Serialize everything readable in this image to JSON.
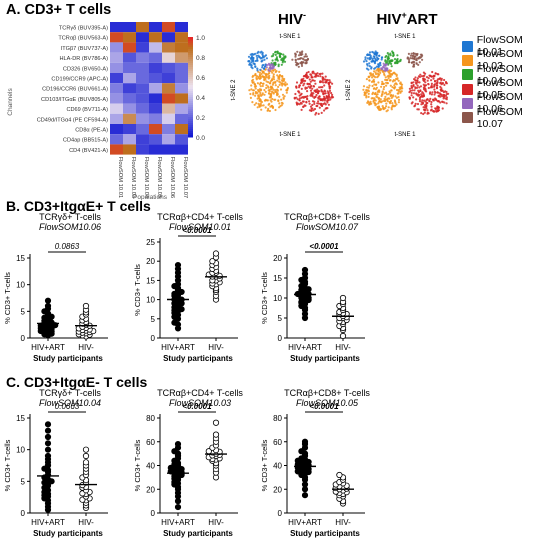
{
  "sections": {
    "a": "A. CD3+ T cells",
    "b": "B. CD3+ItgαE+ T cells",
    "c": "C. CD3+ItgαE- T cells"
  },
  "heatmap": {
    "channels": [
      "TCRγδ (BUV395-A)",
      "TCRαβ (BUV563-A)",
      "ITGβ7 (BUV737-A)",
      "HLA-DR (BV786-A)",
      "CD326 (BV650-A)",
      "CD199/CCR9 (APC-A)",
      "CD196/CCR6 (BUV661-A)",
      "CD103/ITGαE (BUV805-A)",
      "CD69 (BV711-A)",
      "CD49d/ITGα4 (PE CF594-A)",
      "CD8α (PE-A)",
      "CD4ap (BB515-A)",
      "CD4 (BV421-A)"
    ],
    "populations": [
      "FlowSOM 10.01",
      "FlowSOM 10.03",
      "FlowSOM 10.04",
      "FlowSOM 10.05",
      "FlowSOM 10.06",
      "FlowSOM 10.07"
    ],
    "channels_axis": "Channels",
    "populations_axis": "Populations",
    "colorbar_ticks": [
      "1.0",
      "0.8",
      "0.6",
      "0.4",
      "0.2",
      "0.0"
    ],
    "values": [
      [
        0.05,
        0.05,
        0.9,
        0.05,
        0.95,
        0.05
      ],
      [
        0.95,
        0.9,
        0.05,
        0.9,
        0.05,
        0.9
      ],
      [
        0.3,
        0.95,
        0.1,
        0.4,
        0.85,
        0.9
      ],
      [
        0.35,
        0.15,
        0.25,
        0.2,
        0.55,
        0.75
      ],
      [
        0.3,
        0.2,
        0.2,
        0.1,
        0.15,
        0.2
      ],
      [
        0.1,
        0.35,
        0.2,
        0.15,
        0.1,
        0.2
      ],
      [
        0.25,
        0.1,
        0.15,
        0.35,
        0.85,
        0.3
      ],
      [
        0.3,
        0.2,
        0.15,
        0.05,
        0.95,
        0.9
      ],
      [
        0.45,
        0.3,
        0.2,
        0.1,
        0.65,
        0.35
      ],
      [
        0.35,
        0.8,
        0.3,
        0.25,
        0.45,
        0.2
      ],
      [
        0.05,
        0.1,
        0.2,
        0.95,
        0.25,
        0.9
      ],
      [
        0.2,
        0.35,
        0.1,
        0.15,
        0.35,
        0.15
      ],
      [
        0.95,
        0.9,
        0.1,
        0.05,
        0.05,
        0.05
      ]
    ]
  },
  "tsne": {
    "panels": [
      {
        "title": "HIV",
        "sup": "-"
      },
      {
        "title": "HIV",
        "sup": "+",
        "suffix": "ART"
      }
    ],
    "x_axis": "t-SNE 1",
    "y_axis": "t-SNE 2",
    "legend": [
      {
        "label": "FlowSOM 10.01",
        "color": "#1f77d2"
      },
      {
        "label": "FlowSOM 10.03",
        "color": "#f5961e"
      },
      {
        "label": "FlowSOM 10.04",
        "color": "#2ca02c"
      },
      {
        "label": "FlowSOM 10.05",
        "color": "#d62728"
      },
      {
        "label": "FlowSOM 10.06",
        "color": "#9467bd"
      },
      {
        "label": "FlowSOM 10.07",
        "color": "#8c564b"
      }
    ]
  },
  "ylabel": "% CD3+ T-cells",
  "xlabel": "Study participants",
  "chart_data": [
    {
      "type": "scatter",
      "title": "TCRγδ+ T-cells",
      "subtitle": "FlowSOM10.06",
      "categories": [
        "HIV+ART",
        "HIV-"
      ],
      "ylim": [
        0,
        15
      ],
      "yticks": [
        0,
        5,
        10,
        15
      ],
      "p": "0.0863",
      "series": [
        {
          "values": [
            0.5,
            0.8,
            1.0,
            1.2,
            1.4,
            1.5,
            1.7,
            1.9,
            2.0,
            2.2,
            2.4,
            2.6,
            2.8,
            3.0,
            3.2,
            3.5,
            3.8,
            4.0,
            4.3,
            4.6,
            5.0,
            5.5,
            6.0,
            7.0,
            0.9,
            1.3,
            1.8,
            2.3,
            2.9,
            0.7
          ]
        },
        {
          "values": [
            0.3,
            0.5,
            0.7,
            0.9,
            1.0,
            1.2,
            1.3,
            1.5,
            1.6,
            1.8,
            1.9,
            2.1,
            2.3,
            2.5,
            2.7,
            3.0,
            3.3,
            3.6,
            4.0,
            4.4,
            4.8,
            5.3,
            6.0,
            1.1,
            1.4,
            0.6
          ]
        }
      ]
    },
    {
      "type": "scatter",
      "title": "TCRαβ+CD4+ T-cells",
      "subtitle": "FlowSOM10.01",
      "categories": [
        "HIV+ART",
        "HIV-"
      ],
      "ylim": [
        0,
        25
      ],
      "yticks": [
        0,
        5,
        10,
        15,
        20,
        25
      ],
      "p": "<0.0001",
      "series": [
        {
          "values": [
            2.5,
            4,
            5,
            5.5,
            6,
            6.5,
            7,
            7.5,
            8,
            8,
            8.5,
            9,
            9,
            9.5,
            10,
            10,
            10.5,
            11,
            11.5,
            12,
            12.5,
            13,
            13.5,
            14,
            15,
            16,
            17,
            18,
            19,
            3.5,
            7.2,
            11.2
          ]
        },
        {
          "values": [
            10,
            11,
            12,
            12.5,
            13,
            13.5,
            14,
            14.5,
            15,
            15,
            15.5,
            16,
            16,
            16.5,
            17,
            17,
            17.5,
            18,
            18.5,
            19,
            19.5,
            20,
            21,
            22,
            14.2,
            16.2
          ]
        }
      ]
    },
    {
      "type": "scatter",
      "title": "TCRαβ+CD8+ T-cells",
      "subtitle": "FlowSOM10.07",
      "categories": [
        "HIV+ART",
        "HIV-"
      ],
      "ylim": [
        0,
        20
      ],
      "yticks": [
        0,
        5,
        10,
        15,
        20
      ],
      "p": "<0.0001",
      "series": [
        {
          "values": [
            5,
            6,
            7,
            7.5,
            8,
            8.5,
            9,
            9,
            9.5,
            10,
            10,
            10.5,
            11,
            11,
            11.5,
            12,
            12,
            12.5,
            13,
            13.5,
            14,
            14.5,
            15,
            16,
            17,
            8.8,
            10.8,
            12.2,
            11.7,
            9.7
          ]
        },
        {
          "values": [
            0.5,
            2,
            2.5,
            3,
            3.5,
            4,
            4.5,
            5,
            5,
            5.5,
            6,
            6,
            6.5,
            7,
            7.5,
            8,
            8.5,
            9,
            10,
            6.2,
            5.2,
            4.2
          ]
        }
      ]
    },
    {
      "type": "scatter",
      "title": "TCRγδ+ T-cells",
      "subtitle": "FlowSOM10.04",
      "categories": [
        "HIV+ART",
        "HIV-"
      ],
      "ylim": [
        0,
        15
      ],
      "yticks": [
        0,
        5,
        10,
        15
      ],
      "p": "0.0663",
      "series": [
        {
          "values": [
            0.5,
            1,
            1.5,
            2,
            2.3,
            2.6,
            3,
            3.3,
            3.6,
            4,
            4.3,
            4.6,
            5,
            5.3,
            5.6,
            6,
            6.5,
            7,
            7.5,
            8,
            8.5,
            9,
            10,
            11,
            12,
            13,
            14,
            2.8,
            4.8,
            6.8
          ]
        },
        {
          "values": [
            0.8,
            1.2,
            1.6,
            2,
            2.3,
            2.6,
            3,
            3.3,
            3.6,
            4,
            4.4,
            4.8,
            5.2,
            5.6,
            6,
            6.5,
            7,
            7.5,
            8,
            9,
            10,
            3.1,
            2.1,
            4.1
          ]
        }
      ]
    },
    {
      "type": "scatter",
      "title": "TCRαβ+CD4+ T-cells",
      "subtitle": "FlowSOM10.03",
      "categories": [
        "HIV+ART",
        "HIV-"
      ],
      "ylim": [
        0,
        80
      ],
      "yticks": [
        0,
        20,
        40,
        60,
        80
      ],
      "p": "<0.0001",
      "series": [
        {
          "values": [
            5,
            10,
            14,
            17,
            20,
            22,
            24,
            26,
            28,
            30,
            31,
            32,
            33,
            34,
            35,
            36,
            37,
            38,
            40,
            42,
            44,
            46,
            48,
            50,
            52,
            55,
            58,
            29,
            33.5,
            36.5,
            25,
            41
          ]
        },
        {
          "values": [
            30,
            34,
            37,
            40,
            42,
            44,
            45,
            46,
            47,
            48,
            49,
            50,
            51,
            52,
            53,
            55,
            57,
            60,
            63,
            66,
            76,
            45.5,
            48.5,
            51.5
          ]
        }
      ]
    },
    {
      "type": "scatter",
      "title": "TCRαβ+CD8+ T-cells",
      "subtitle": "FlowSOM10.05",
      "categories": [
        "HIV+ART",
        "HIV-"
      ],
      "ylim": [
        0,
        80
      ],
      "yticks": [
        0,
        20,
        40,
        60,
        80
      ],
      "p": "<0.0001",
      "series": [
        {
          "values": [
            15,
            20,
            24,
            28,
            30,
            32,
            33,
            34,
            35,
            36,
            37,
            38,
            39,
            40,
            41,
            42,
            43,
            44,
            45,
            46,
            48,
            50,
            52,
            55,
            58,
            60,
            36.5,
            39.5,
            42.5,
            34.5
          ]
        },
        {
          "values": [
            8,
            10,
            12,
            14,
            15,
            16,
            17,
            18,
            19,
            20,
            21,
            22,
            23,
            24,
            25,
            26,
            28,
            30,
            32,
            17.5,
            20.5,
            22.5
          ]
        }
      ]
    }
  ]
}
